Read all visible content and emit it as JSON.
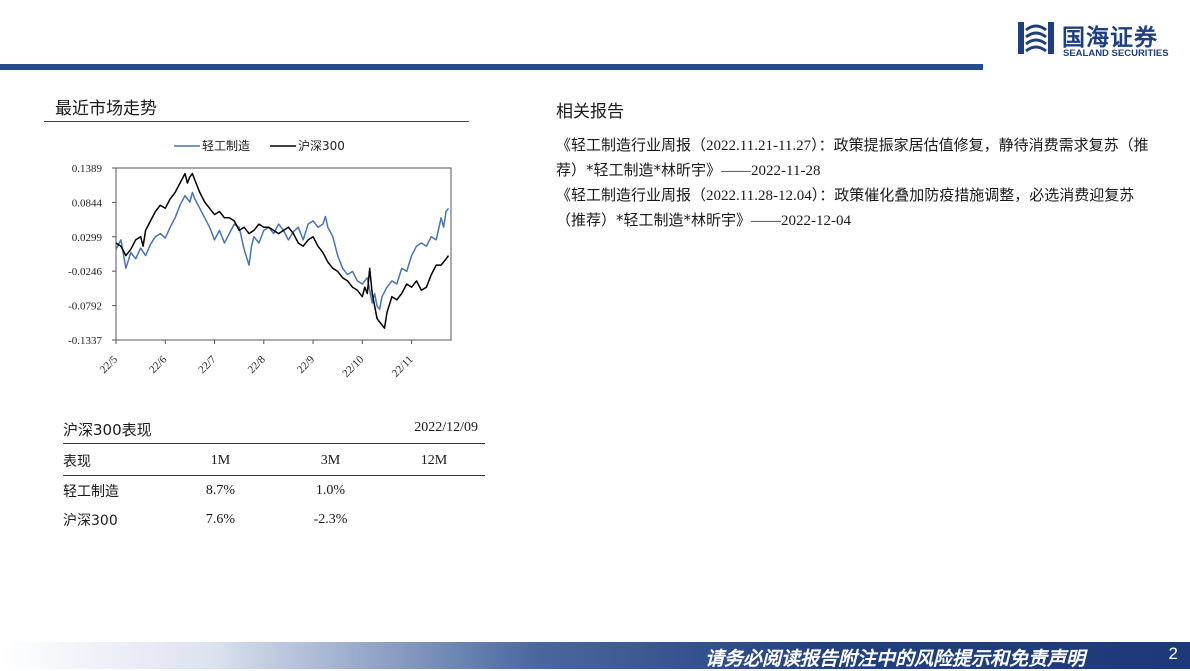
{
  "brand": {
    "name_cn": "国海证券",
    "name_en": "SEALAND SECURITIES",
    "color": "#1d3f7f"
  },
  "market": {
    "title": "最近市场走势"
  },
  "chart_data": {
    "type": "line",
    "legend_position": "top",
    "grid": false,
    "yticks": [
      "0.1389",
      "0.0844",
      "0.0299",
      "-0.0246",
      "-0.0792",
      "-0.1337"
    ],
    "ylim": [
      -0.1337,
      0.1389
    ],
    "xticks": [
      "22/5",
      "22/6",
      "22/7",
      "22/8",
      "22/9",
      "22/10",
      "22/11"
    ],
    "xrange": [
      0,
      6.8
    ],
    "series": [
      {
        "name": "轻工制造",
        "color": "#4a74b0",
        "points": [
          [
            0,
            0.01
          ],
          [
            0.1,
            0.025
          ],
          [
            0.2,
            -0.02
          ],
          [
            0.3,
            0.005
          ],
          [
            0.4,
            -0.005
          ],
          [
            0.5,
            0.012
          ],
          [
            0.6,
            0.0
          ],
          [
            0.7,
            0.018
          ],
          [
            0.8,
            0.03
          ],
          [
            0.9,
            0.035
          ],
          [
            1.0,
            0.028
          ],
          [
            1.1,
            0.045
          ],
          [
            1.2,
            0.06
          ],
          [
            1.3,
            0.08
          ],
          [
            1.4,
            0.095
          ],
          [
            1.5,
            0.085
          ],
          [
            1.55,
            0.1
          ],
          [
            1.6,
            0.09
          ],
          [
            1.7,
            0.075
          ],
          [
            1.8,
            0.06
          ],
          [
            1.9,
            0.045
          ],
          [
            2.0,
            0.025
          ],
          [
            2.1,
            0.04
          ],
          [
            2.2,
            0.02
          ],
          [
            2.3,
            0.035
          ],
          [
            2.4,
            0.05
          ],
          [
            2.5,
            0.045
          ],
          [
            2.6,
            0.01
          ],
          [
            2.7,
            -0.015
          ],
          [
            2.75,
            0.015
          ],
          [
            2.8,
            0.03
          ],
          [
            2.9,
            0.02
          ],
          [
            3.0,
            0.04
          ],
          [
            3.1,
            0.045
          ],
          [
            3.2,
            0.035
          ],
          [
            3.3,
            0.05
          ],
          [
            3.4,
            0.04
          ],
          [
            3.5,
            0.025
          ],
          [
            3.6,
            0.038
          ],
          [
            3.7,
            0.045
          ],
          [
            3.8,
            0.025
          ],
          [
            3.9,
            0.05
          ],
          [
            4.0,
            0.055
          ],
          [
            4.1,
            0.045
          ],
          [
            4.2,
            0.05
          ],
          [
            4.25,
            0.062
          ],
          [
            4.3,
            0.045
          ],
          [
            4.4,
            0.03
          ],
          [
            4.5,
            0.0
          ],
          [
            4.6,
            -0.02
          ],
          [
            4.7,
            -0.03
          ],
          [
            4.8,
            -0.025
          ],
          [
            4.9,
            -0.04
          ],
          [
            5.0,
            -0.045
          ],
          [
            5.1,
            -0.035
          ],
          [
            5.15,
            -0.055
          ],
          [
            5.2,
            -0.075
          ],
          [
            5.25,
            -0.06
          ],
          [
            5.3,
            -0.08
          ],
          [
            5.35,
            -0.085
          ],
          [
            5.4,
            -0.065
          ],
          [
            5.5,
            -0.05
          ],
          [
            5.6,
            -0.04
          ],
          [
            5.7,
            -0.045
          ],
          [
            5.8,
            -0.02
          ],
          [
            5.9,
            -0.025
          ],
          [
            6.0,
            0.0
          ],
          [
            6.1,
            0.015
          ],
          [
            6.2,
            0.02
          ],
          [
            6.3,
            0.015
          ],
          [
            6.4,
            0.03
          ],
          [
            6.5,
            0.025
          ],
          [
            6.6,
            0.06
          ],
          [
            6.65,
            0.045
          ],
          [
            6.7,
            0.07
          ],
          [
            6.75,
            0.075
          ]
        ]
      },
      {
        "name": "沪深300",
        "color": "#000000",
        "points": [
          [
            0,
            0.02
          ],
          [
            0.1,
            0.015
          ],
          [
            0.2,
            0.0
          ],
          [
            0.3,
            0.01
          ],
          [
            0.4,
            0.025
          ],
          [
            0.5,
            0.03
          ],
          [
            0.55,
            0.015
          ],
          [
            0.6,
            0.04
          ],
          [
            0.7,
            0.055
          ],
          [
            0.8,
            0.07
          ],
          [
            0.9,
            0.08
          ],
          [
            1.0,
            0.075
          ],
          [
            1.1,
            0.09
          ],
          [
            1.2,
            0.1
          ],
          [
            1.3,
            0.115
          ],
          [
            1.4,
            0.13
          ],
          [
            1.45,
            0.115
          ],
          [
            1.5,
            0.125
          ],
          [
            1.55,
            0.13
          ],
          [
            1.6,
            0.12
          ],
          [
            1.7,
            0.1
          ],
          [
            1.8,
            0.085
          ],
          [
            1.9,
            0.075
          ],
          [
            2.0,
            0.065
          ],
          [
            2.1,
            0.07
          ],
          [
            2.2,
            0.06
          ],
          [
            2.3,
            0.06
          ],
          [
            2.4,
            0.055
          ],
          [
            2.5,
            0.04
          ],
          [
            2.6,
            0.045
          ],
          [
            2.7,
            0.035
          ],
          [
            2.8,
            0.04
          ],
          [
            2.9,
            0.05
          ],
          [
            3.0,
            0.045
          ],
          [
            3.1,
            0.045
          ],
          [
            3.2,
            0.04
          ],
          [
            3.3,
            0.035
          ],
          [
            3.4,
            0.04
          ],
          [
            3.5,
            0.045
          ],
          [
            3.6,
            0.035
          ],
          [
            3.7,
            0.02
          ],
          [
            3.8,
            0.015
          ],
          [
            3.9,
            0.025
          ],
          [
            4.0,
            0.03
          ],
          [
            4.1,
            0.015
          ],
          [
            4.2,
            0.005
          ],
          [
            4.3,
            -0.01
          ],
          [
            4.4,
            -0.02
          ],
          [
            4.5,
            -0.025
          ],
          [
            4.6,
            -0.035
          ],
          [
            4.7,
            -0.04
          ],
          [
            4.8,
            -0.05
          ],
          [
            4.9,
            -0.055
          ],
          [
            5.0,
            -0.065
          ],
          [
            5.05,
            -0.05
          ],
          [
            5.1,
            -0.06
          ],
          [
            5.15,
            -0.02
          ],
          [
            5.2,
            -0.06
          ],
          [
            5.3,
            -0.1
          ],
          [
            5.4,
            -0.11
          ],
          [
            5.45,
            -0.115
          ],
          [
            5.5,
            -0.09
          ],
          [
            5.6,
            -0.065
          ],
          [
            5.7,
            -0.07
          ],
          [
            5.8,
            -0.06
          ],
          [
            5.9,
            -0.045
          ],
          [
            6.0,
            -0.05
          ],
          [
            6.1,
            -0.04
          ],
          [
            6.2,
            -0.055
          ],
          [
            6.3,
            -0.05
          ],
          [
            6.4,
            -0.03
          ],
          [
            6.5,
            -0.015
          ],
          [
            6.6,
            -0.015
          ],
          [
            6.7,
            -0.005
          ],
          [
            6.75,
            0.0
          ]
        ]
      }
    ]
  },
  "performance": {
    "title": "沪深300表现",
    "date": "2022/12/09",
    "header": [
      "表现",
      "1M",
      "3M",
      "12M"
    ],
    "rows": [
      [
        "轻工制造",
        "8.7%",
        "1.0%",
        ""
      ],
      [
        "沪深300",
        "7.6%",
        "-2.3%",
        ""
      ]
    ]
  },
  "reports": {
    "title": "相关报告",
    "items": [
      {
        "part1": "《轻工制造行业周报（",
        "part2": "2022.11.21-11.27",
        "part3": "）：政策提振家居估值修复，静待消费需求复苏（推荐）*轻工制造*林昕宇》",
        "part4": "——2022-11-28"
      },
      {
        "part1": "《轻工制造行业周报（",
        "part2": "2022.11.28-12.04",
        "part3": "）：政策催化叠加防疫措施调整，必选消费迎复苏（推荐）*轻工制造*林昕宇》",
        "part4": "——2022-12-04"
      }
    ]
  },
  "footer": {
    "disclaimer": "请务必阅读报告附注中的风险提示和免责声明",
    "page": "2"
  }
}
